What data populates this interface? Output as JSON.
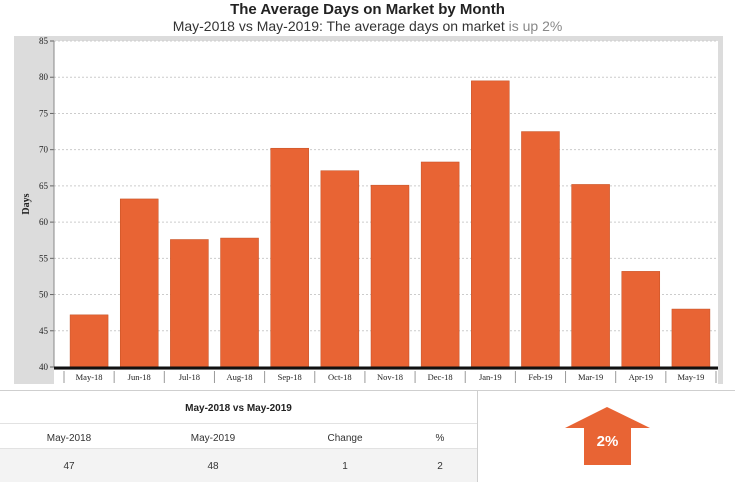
{
  "header": {
    "title": "The Average Days on Market by Month",
    "subtitle_main": "May-2018 vs May-2019: The average days on market ",
    "subtitle_highlight": "is up 2%"
  },
  "chart_data": {
    "type": "bar",
    "categories": [
      "May-18",
      "Jun-18",
      "Jul-18",
      "Aug-18",
      "Sep-18",
      "Oct-18",
      "Nov-18",
      "Dec-18",
      "Jan-19",
      "Feb-19",
      "Mar-19",
      "Apr-19",
      "May-19"
    ],
    "values": [
      47.2,
      63.2,
      57.6,
      57.8,
      70.2,
      67.1,
      65.1,
      68.3,
      79.5,
      72.5,
      65.2,
      53.2,
      48.0
    ],
    "ylabel": "Days",
    "xlabel": "",
    "ylim": [
      40,
      85
    ],
    "yticks": [
      40,
      45,
      50,
      55,
      60,
      65,
      70,
      75,
      80,
      85
    ],
    "grid": true,
    "bar_color": "#e86434"
  },
  "table": {
    "heading": "May-2018 vs May-2019",
    "headers": [
      "May-2018",
      "May-2019",
      "Change",
      "%"
    ],
    "values": [
      "47",
      "48",
      "1",
      "2"
    ]
  },
  "indicator": {
    "label": "2%",
    "direction": "up",
    "color": "#e86434"
  }
}
